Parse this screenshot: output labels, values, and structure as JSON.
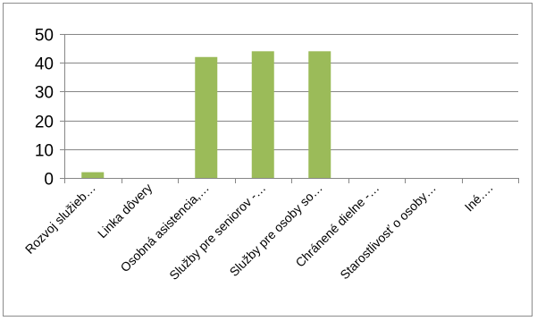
{
  "chart_data": {
    "type": "bar",
    "categories": [
      "Rozvoj služieb…",
      "Linka dôvery",
      "Osobná asistencia,…",
      "Služby pre seniorov -…",
      "Služby pre osoby so…",
      "Chránené dielne -…",
      "Starostlivosť o osoby…",
      "Iné…."
    ],
    "values": [
      2,
      0,
      42,
      44,
      44,
      0,
      0,
      0
    ],
    "ylim": [
      0,
      50
    ],
    "yticks": [
      0,
      10,
      20,
      30,
      40,
      50
    ],
    "grid": true,
    "legend": "none",
    "colors": {
      "bar": "#9BBB59",
      "grid": "#868686",
      "axis": "#868686",
      "border": "#8c8c8c"
    }
  }
}
